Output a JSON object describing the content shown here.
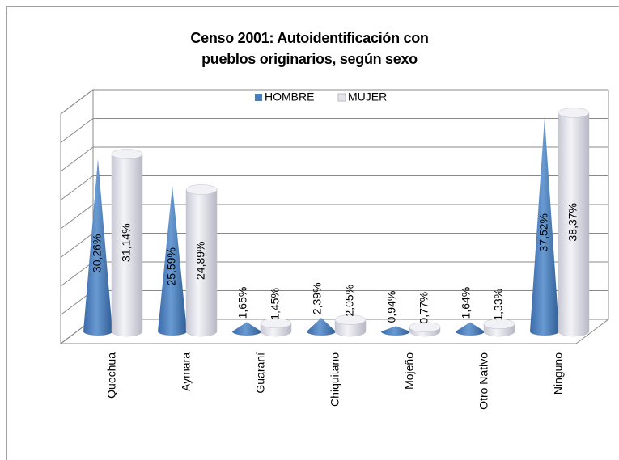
{
  "chart_data": {
    "type": "bar3d",
    "title": "Censo 2001: Autoidentificación con pueblos originarios, según sexo",
    "categories": [
      "Quechua",
      "Aymara",
      "Guaraní",
      "Chiquitano",
      "Mojeño",
      "Otro Nativo",
      "Ninguno"
    ],
    "series": [
      {
        "name": "HOMBRE",
        "color": "#4a7ebb",
        "shape": "cone",
        "values": [
          30.26,
          25.59,
          1.65,
          2.39,
          0.94,
          1.64,
          37.52
        ],
        "value_labels": [
          "30,26%",
          "25,59%",
          "1,65%",
          "2,39%",
          "0,94%",
          "1,64%",
          "37,52%"
        ]
      },
      {
        "name": "MUJER",
        "color": "#e4e4ec",
        "shape": "cylinder",
        "values": [
          31.14,
          24.89,
          1.45,
          2.05,
          0.77,
          1.33,
          38.37
        ],
        "value_labels": [
          "31,14%",
          "24,89%",
          "1,45%",
          "2,05%",
          "0,77%",
          "1,33%",
          "38,37%"
        ]
      }
    ],
    "ylim": [
      0,
      40
    ],
    "yticks": [
      0,
      5,
      10,
      15,
      20,
      25,
      30,
      35,
      40
    ],
    "grid": true,
    "legend": "top"
  }
}
